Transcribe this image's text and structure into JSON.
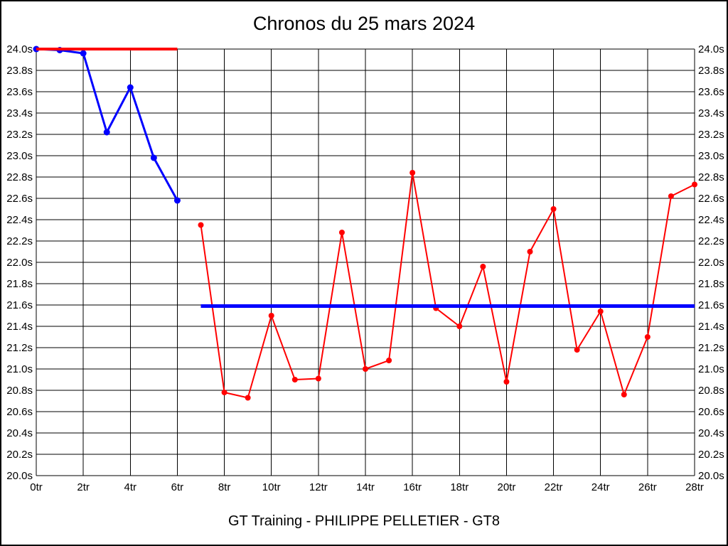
{
  "page": {
    "title": "Chronos du 25 mars 2024",
    "footer": "GT Training - PHILIPPE PELLETIER - GT8"
  },
  "chart_data": {
    "type": "line",
    "title": "Chronos du 25 mars 2024",
    "xlabel": "",
    "ylabel": "",
    "x_unit": "tr",
    "y_unit": "s",
    "xlim": [
      0,
      28
    ],
    "ylim": [
      20.0,
      24.0
    ],
    "x_tick_step": 2,
    "y_tick_step": 0.2,
    "grid": true,
    "legend": "none",
    "colors": {
      "red": "#ff0000",
      "blue": "#0000ff",
      "grid": "#000000",
      "background": "#ffffff"
    },
    "x_tick_labels": [
      "0tr",
      "2tr",
      "4tr",
      "6tr",
      "8tr",
      "10tr",
      "12tr",
      "14tr",
      "16tr",
      "18tr",
      "20tr",
      "22tr",
      "24tr",
      "26tr",
      "28tr"
    ],
    "y_tick_labels_top_to_bottom": [
      "24.0s",
      "23.8s",
      "23.6s",
      "23.4s",
      "23.2s",
      "23.0s",
      "22.8s",
      "22.6s",
      "22.4s",
      "22.2s",
      "22.0s",
      "21.8s",
      "21.6s",
      "21.4s",
      "21.2s",
      "21.0s",
      "20.8s",
      "20.6s",
      "20.4s",
      "20.2s",
      "20.0s"
    ],
    "series": [
      {
        "name": "laps-0-6-blue",
        "color": "#0000ff",
        "line_width": 3,
        "marker_radius": 4.5,
        "x": [
          0,
          1,
          2,
          3,
          4,
          5,
          6
        ],
        "values": [
          24.0,
          23.99,
          23.96,
          23.22,
          23.64,
          22.98,
          22.58
        ]
      },
      {
        "name": "laps-7-28-red",
        "color": "#ff0000",
        "line_width": 2,
        "marker_radius": 4,
        "x": [
          7,
          8,
          9,
          10,
          11,
          12,
          13,
          14,
          15,
          16,
          17,
          18,
          19,
          20,
          21,
          22,
          23,
          24,
          25,
          26,
          27,
          28
        ],
        "values": [
          22.35,
          20.78,
          20.73,
          21.5,
          20.9,
          20.91,
          22.28,
          21.0,
          21.08,
          22.84,
          21.57,
          21.4,
          21.96,
          20.88,
          22.1,
          22.5,
          21.18,
          21.54,
          20.76,
          21.3,
          22.62,
          22.73
        ]
      }
    ],
    "reference_lines": [
      {
        "name": "max-reference-red",
        "color": "#ff0000",
        "value": 24.0,
        "x_start": 0,
        "x_end": 6,
        "line_width": 4
      },
      {
        "name": "average-reference-blue",
        "color": "#0000ff",
        "value": 21.59,
        "x_start": 7,
        "x_end": 28,
        "line_width": 5
      }
    ]
  }
}
